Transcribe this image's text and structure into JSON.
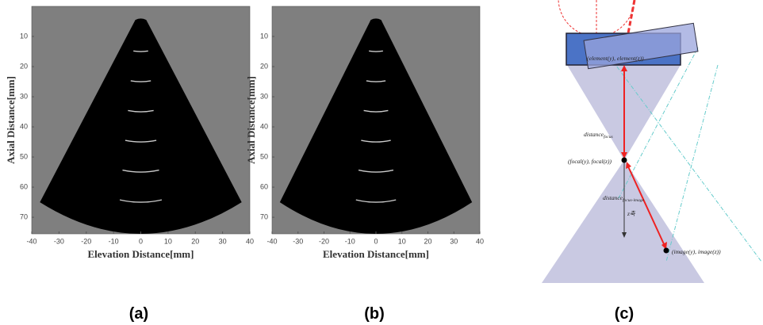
{
  "panels": [
    {
      "caption": "(a)",
      "x_axis": {
        "label": "Elevation Distance[mm]",
        "ticks": [
          -40,
          -30,
          -20,
          -10,
          0,
          10,
          20,
          30,
          40
        ],
        "range": [
          -40,
          40
        ]
      },
      "y_axis": {
        "label": "Axial Distance[mm]",
        "ticks": [
          10,
          20,
          30,
          40,
          50,
          60,
          70
        ],
        "range": [
          0,
          75.5
        ]
      }
    },
    {
      "caption": "(b)",
      "x_axis": {
        "label": "Elevation Distance[mm]",
        "ticks": [
          -40,
          -30,
          -20,
          -10,
          0,
          10,
          20,
          30,
          40
        ],
        "range": [
          -40,
          40
        ]
      },
      "y_axis": {
        "label": "Axial Distance[mm]",
        "ticks": [
          10,
          20,
          30,
          40,
          50,
          60,
          70
        ],
        "range": [
          0,
          75.5
        ]
      }
    }
  ],
  "diagram": {
    "caption": "(c)",
    "element": "(element(y), element(z))",
    "distance_focus": {
      "text": "distance",
      "sub": "focus"
    },
    "focal": "(focal(y), focal(z))",
    "distance_focus_image": {
      "text": "distance",
      "sub": "focus-image"
    },
    "z_axis": "z축",
    "image": "(image(y), image(z))"
  }
}
